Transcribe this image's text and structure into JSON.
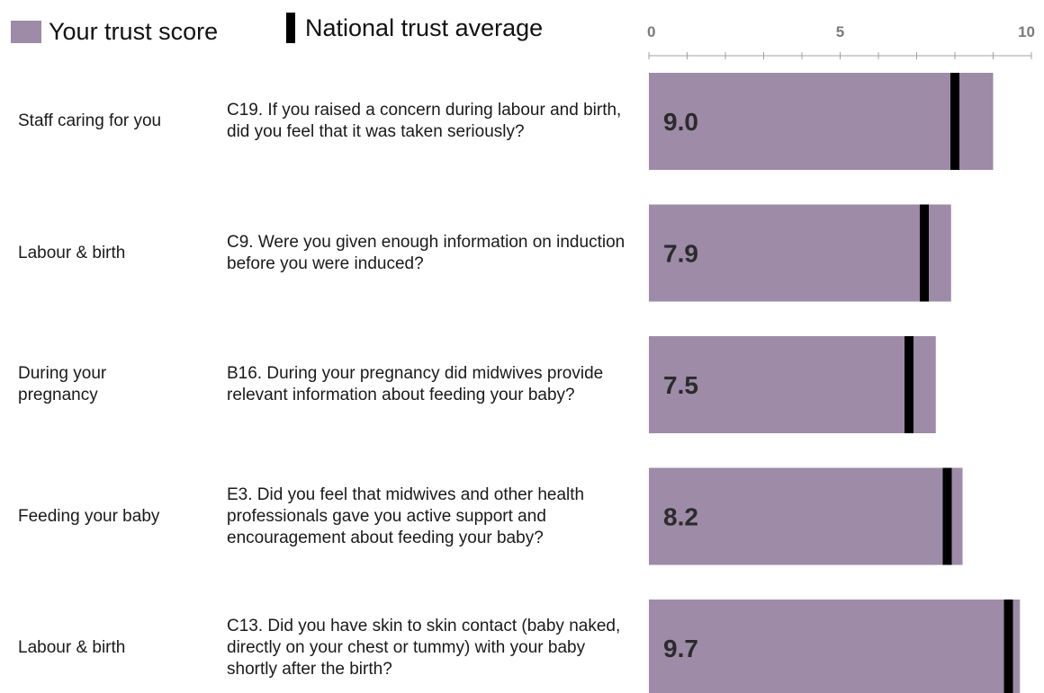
{
  "legend": {
    "score_label": "Your trust score",
    "average_label": "National trust average"
  },
  "chart_data": {
    "type": "bar",
    "orientation": "horizontal",
    "xlim": [
      0,
      10
    ],
    "ticks": [
      "0",
      "5",
      "10"
    ],
    "colors": {
      "score_bar": "#9d8ba7",
      "average_marker": "#000000"
    },
    "rows": [
      {
        "category": "Staff caring for you",
        "question": "C19. If you raised a concern during labour and birth, did you feel that it was taken seriously?",
        "score": 9.0,
        "score_label": "9.0",
        "national_average": 8.0
      },
      {
        "category": "Labour & birth",
        "question": "C9. Were you given enough information on induction before you were induced?",
        "score": 7.9,
        "score_label": "7.9",
        "national_average": 7.2
      },
      {
        "category": "During your pregnancy",
        "question": "B16. During your pregnancy did midwives provide relevant information about feeding your baby?",
        "score": 7.5,
        "score_label": "7.5",
        "national_average": 6.8
      },
      {
        "category": "Feeding your baby",
        "question": "E3. Did you feel that midwives and other health professionals gave you active support and encouragement about feeding your baby?",
        "score": 8.2,
        "score_label": "8.2",
        "national_average": 7.8
      },
      {
        "category": "Labour & birth",
        "question": "C13. Did you have skin to skin contact (baby naked, directly on your chest or tummy) with your baby shortly after the birth?",
        "score": 9.7,
        "score_label": "9.7",
        "national_average": 9.4
      }
    ]
  }
}
